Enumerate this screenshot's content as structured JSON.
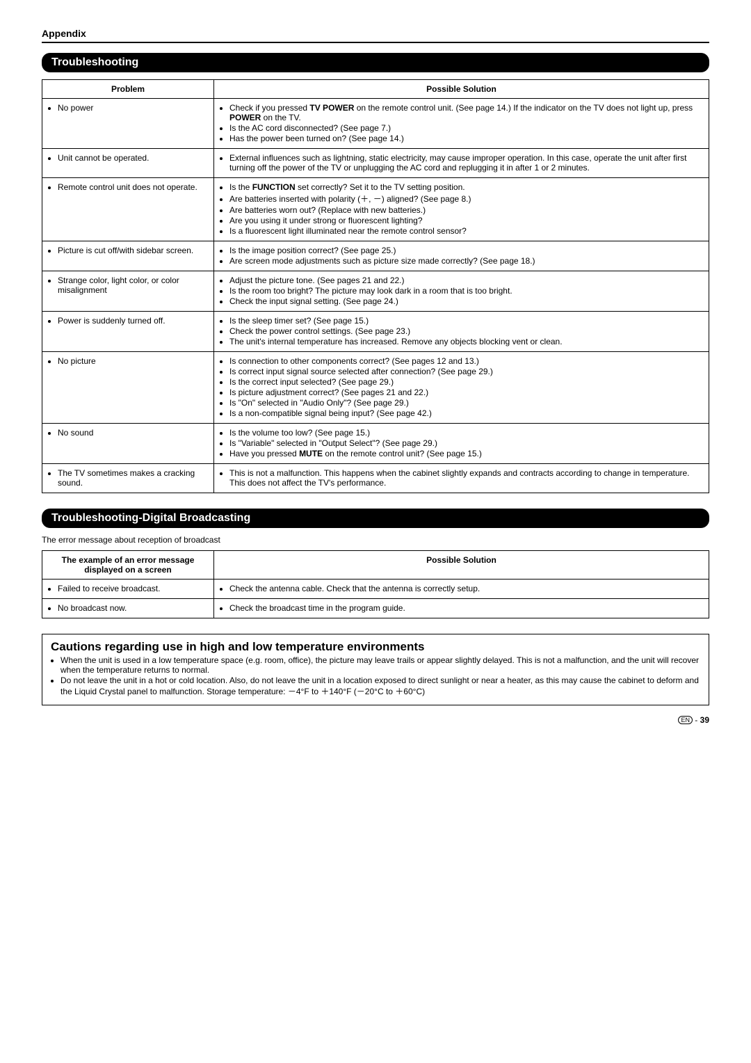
{
  "appendix_label": "Appendix",
  "section1_title": "Troubleshooting",
  "table1": {
    "col1_header": "Problem",
    "col2_header": "Possible Solution",
    "rows": [
      {
        "problem": "No power",
        "solutions": [
          "Check if you pressed TV POWER on the remote control unit. (See page 14.) If the indicator on the TV does not light up, press POWER on the TV.",
          "Is the AC cord disconnected? (See page 7.)",
          "Has the power been turned on? (See page 14.)"
        ]
      },
      {
        "problem": "Unit cannot be operated.",
        "solutions": [
          "External influences such as lightning, static electricity, may cause improper operation. In this case, operate the unit after first turning off the power of the TV or unplugging the AC cord and replugging it in after 1 or 2 minutes."
        ]
      },
      {
        "problem": "Remote control unit does not operate.",
        "solutions": [
          "Is the FUNCTION set correctly? Set it to the TV setting position.",
          "Are batteries inserted with polarity (＋, －) aligned? (See page 8.)",
          "Are batteries worn out? (Replace with new batteries.)",
          "Are you using it under strong or fluorescent lighting?",
          "Is a fluorescent light illuminated near the remote control sensor?"
        ]
      },
      {
        "problem": "Picture is cut off/with sidebar screen.",
        "solutions": [
          "Is the image position correct? (See page 25.)",
          "Are screen mode adjustments such as picture size made correctly? (See page 18.)"
        ]
      },
      {
        "problem": "Strange color, light color, or color misalignment",
        "solutions": [
          "Adjust the picture tone. (See pages 21 and 22.)",
          "Is the room too bright? The picture may look dark in a room that is too bright.",
          "Check the input signal setting. (See page 24.)"
        ]
      },
      {
        "problem": "Power is suddenly turned off.",
        "solutions": [
          "Is the sleep timer set? (See page 15.)",
          "Check the power control settings. (See page 23.)",
          "The unit's internal temperature has increased. Remove any objects blocking vent or clean."
        ]
      },
      {
        "problem": "No picture",
        "solutions": [
          "Is connection to other components correct? (See pages 12 and 13.)",
          "Is correct input signal source selected after connection? (See page 29.)",
          "Is the correct input selected? (See page 29.)",
          "Is picture adjustment correct? (See pages 21 and 22.)",
          "Is \"On\" selected in \"Audio Only\"? (See page 29.)",
          "Is a non-compatible signal being input? (See page 42.)"
        ]
      },
      {
        "problem": "No sound",
        "solutions": [
          "Is the volume too low? (See page 15.)",
          "Is \"Variable\" selected in \"Output Select\"? (See page 29.)",
          "Have you pressed MUTE on the remote control unit? (See page 15.)"
        ]
      },
      {
        "problem": "The TV sometimes makes a cracking sound.",
        "solutions": [
          "This is not a malfunction. This happens when the cabinet slightly expands and contracts according to change in temperature. This does not affect the TV's performance."
        ]
      }
    ]
  },
  "section2_title": "Troubleshooting-Digital Broadcasting",
  "section2_intro": "The error message about reception of broadcast",
  "table2": {
    "col1_header": "The example of an error message displayed on a screen",
    "col2_header": "Possible Solution",
    "rows": [
      {
        "problem": "Failed to receive broadcast.",
        "solutions": [
          "Check the antenna cable. Check that the antenna is correctly setup."
        ]
      },
      {
        "problem": "No broadcast now.",
        "solutions": [
          "Check the broadcast time in the program guide."
        ]
      }
    ]
  },
  "cautions": {
    "title": "Cautions regarding use in high and low temperature environments",
    "items": [
      "When the unit is used in a low temperature space (e.g. room, office), the picture may leave trails or appear slightly delayed. This is not a malfunction, and the unit will recover when the temperature returns to normal.",
      "Do not leave the unit in a hot or cold location. Also, do not leave the unit in a location exposed to direct sunlight or near a heater, as this may cause the cabinet to deform and the Liquid Crystal panel to malfunction. Storage temperature: －4°F to ＋140°F (－20°C to ＋60°C)"
    ]
  },
  "footer": {
    "lang": "EN",
    "sep": " - ",
    "page": "39"
  }
}
